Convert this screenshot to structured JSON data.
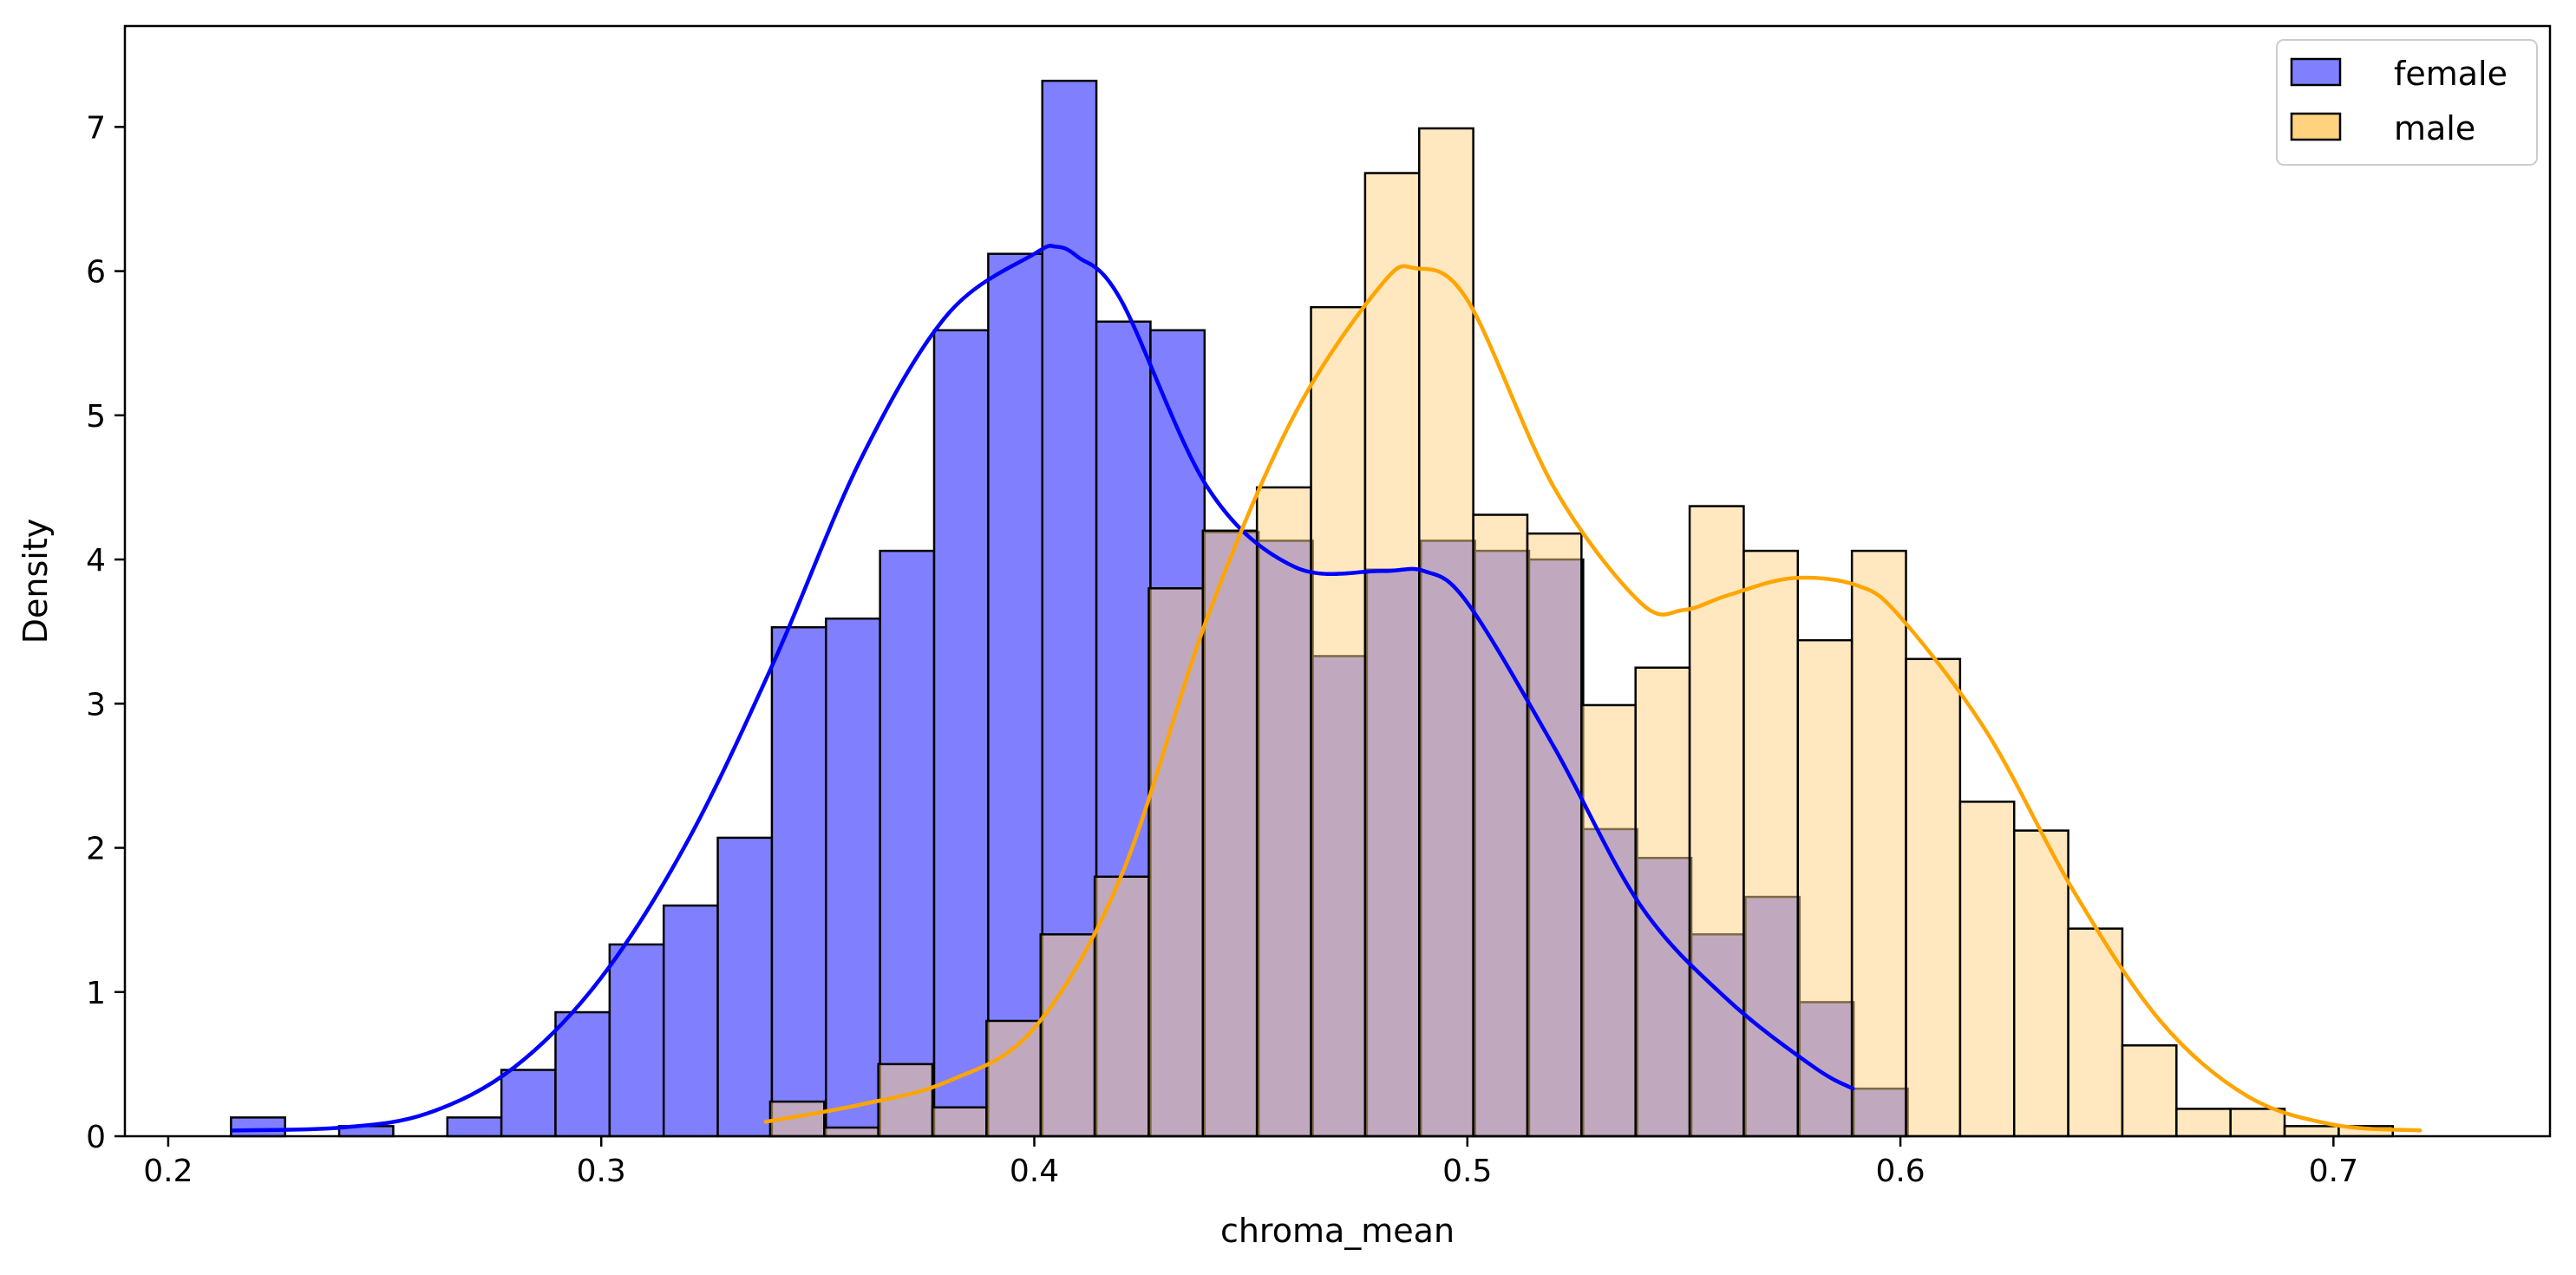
{
  "chart_data": {
    "type": "histogram",
    "xlabel": "chroma_mean",
    "ylabel": "Density",
    "xlim": [
      0.19,
      0.75
    ],
    "ylim": [
      0,
      7.7
    ],
    "xticks": [
      0.2,
      0.3,
      0.4,
      0.5,
      0.6,
      0.7
    ],
    "xtick_labels": [
      "0.2",
      "0.3",
      "0.4",
      "0.5",
      "0.6",
      "0.7"
    ],
    "yticks": [
      0,
      1,
      2,
      3,
      4,
      5,
      6,
      7
    ],
    "ytick_labels": [
      "0",
      "1",
      "2",
      "3",
      "4",
      "5",
      "6",
      "7"
    ],
    "grid": false,
    "legend_position": "top-right",
    "series": [
      {
        "name": "female",
        "color": "#0000ff",
        "fill": "#8080ff",
        "bin_start": 0.2145,
        "bin_width": 0.01249,
        "values": [
          0.13,
          0.0,
          0.07,
          0.0,
          0.13,
          0.46,
          0.86,
          1.33,
          1.6,
          2.07,
          3.53,
          3.59,
          4.06,
          5.59,
          6.12,
          7.32,
          5.65,
          5.59,
          4.19,
          4.13,
          3.33,
          3.93,
          4.13,
          4.06,
          4.0,
          2.13,
          1.93,
          1.4,
          1.66,
          0.93,
          0.33
        ],
        "kde_x": [
          0.215,
          0.24,
          0.26,
          0.28,
          0.3,
          0.32,
          0.34,
          0.36,
          0.38,
          0.4,
          0.405,
          0.41,
          0.42,
          0.44,
          0.46,
          0.48,
          0.49,
          0.5,
          0.52,
          0.54,
          0.56,
          0.58,
          0.589
        ],
        "kde_y": [
          0.04,
          0.06,
          0.16,
          0.48,
          1.1,
          2.05,
          3.3,
          4.7,
          5.7,
          6.12,
          6.17,
          6.1,
          5.8,
          4.5,
          3.95,
          3.92,
          3.92,
          3.7,
          2.7,
          1.6,
          0.95,
          0.48,
          0.33
        ]
      },
      {
        "name": "male",
        "color": "#ffa500",
        "fill": "#ffd27f",
        "bin_start": 0.339,
        "bin_width": 0.01249,
        "values": [
          0.24,
          0.06,
          0.5,
          0.2,
          0.8,
          1.4,
          1.8,
          3.8,
          4.2,
          4.5,
          5.75,
          6.68,
          6.99,
          4.31,
          4.18,
          2.99,
          3.25,
          4.37,
          4.06,
          3.44,
          4.06,
          3.31,
          2.32,
          2.12,
          1.44,
          0.63,
          0.19,
          0.19,
          0.07,
          0.07
        ],
        "kde_x": [
          0.338,
          0.36,
          0.38,
          0.4,
          0.42,
          0.44,
          0.46,
          0.48,
          0.488,
          0.5,
          0.52,
          0.54,
          0.55,
          0.56,
          0.575,
          0.59,
          0.6,
          0.62,
          0.64,
          0.66,
          0.68,
          0.7,
          0.72
        ],
        "kde_y": [
          0.1,
          0.22,
          0.38,
          0.75,
          1.8,
          3.6,
          5.0,
          5.9,
          6.02,
          5.8,
          4.5,
          3.7,
          3.65,
          3.75,
          3.87,
          3.82,
          3.6,
          2.8,
          1.7,
          0.8,
          0.28,
          0.08,
          0.04
        ]
      }
    ]
  }
}
